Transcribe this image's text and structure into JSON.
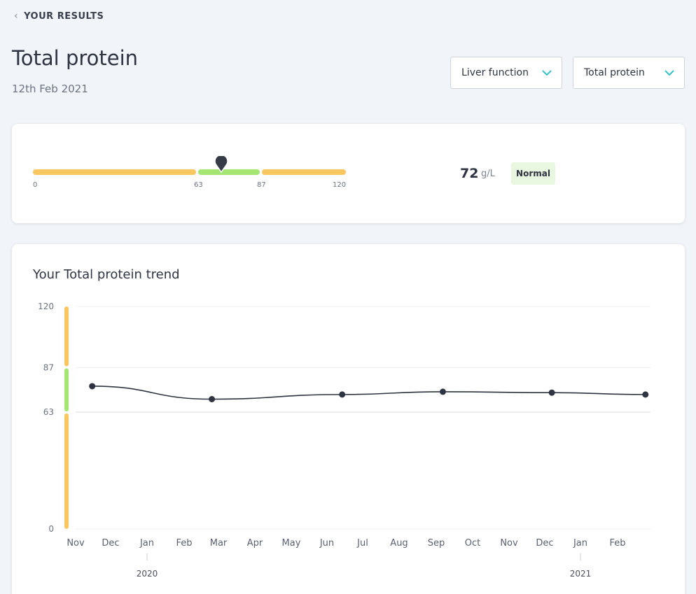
{
  "nav": {
    "back_label": "YOUR RESULTS"
  },
  "header": {
    "title": "Total protein",
    "date": "12th Feb 2021"
  },
  "filters": {
    "category": "Liver function",
    "marker": "Total protein"
  },
  "result": {
    "value": "72",
    "unit": "g/L",
    "status": "Normal",
    "range_ticks": [
      "0",
      "63",
      "87",
      "120"
    ],
    "marker_value": 72,
    "range_min": 0,
    "range_max": 120
  },
  "colors": {
    "normal": "#a5e672",
    "out_of_range": "#f9c660",
    "line": "#2f3442"
  },
  "trend": {
    "title": "Your Total protein trend"
  },
  "chart_data": {
    "type": "line",
    "x": [
      "2019-11-03",
      "2020-02-12",
      "2020-06-01",
      "2020-08-25",
      "2020-11-25",
      "2021-02-12"
    ],
    "series": [
      {
        "values": [
          77,
          70,
          72.5,
          74,
          73.5,
          72.5
        ]
      }
    ],
    "y_ticks": [
      0,
      63,
      87,
      120
    ],
    "ylim": [
      0,
      120
    ],
    "x_month_labels": [
      "Nov",
      "Dec",
      "Jan",
      "Feb",
      "Mar",
      "Apr",
      "May",
      "Jun",
      "Jul",
      "Aug",
      "Sep",
      "Oct",
      "Nov",
      "Dec",
      "Jan",
      "Feb"
    ],
    "x_year_labels": [
      "2020",
      "2021"
    ],
    "normal_range": [
      63,
      87
    ],
    "grid": true
  }
}
